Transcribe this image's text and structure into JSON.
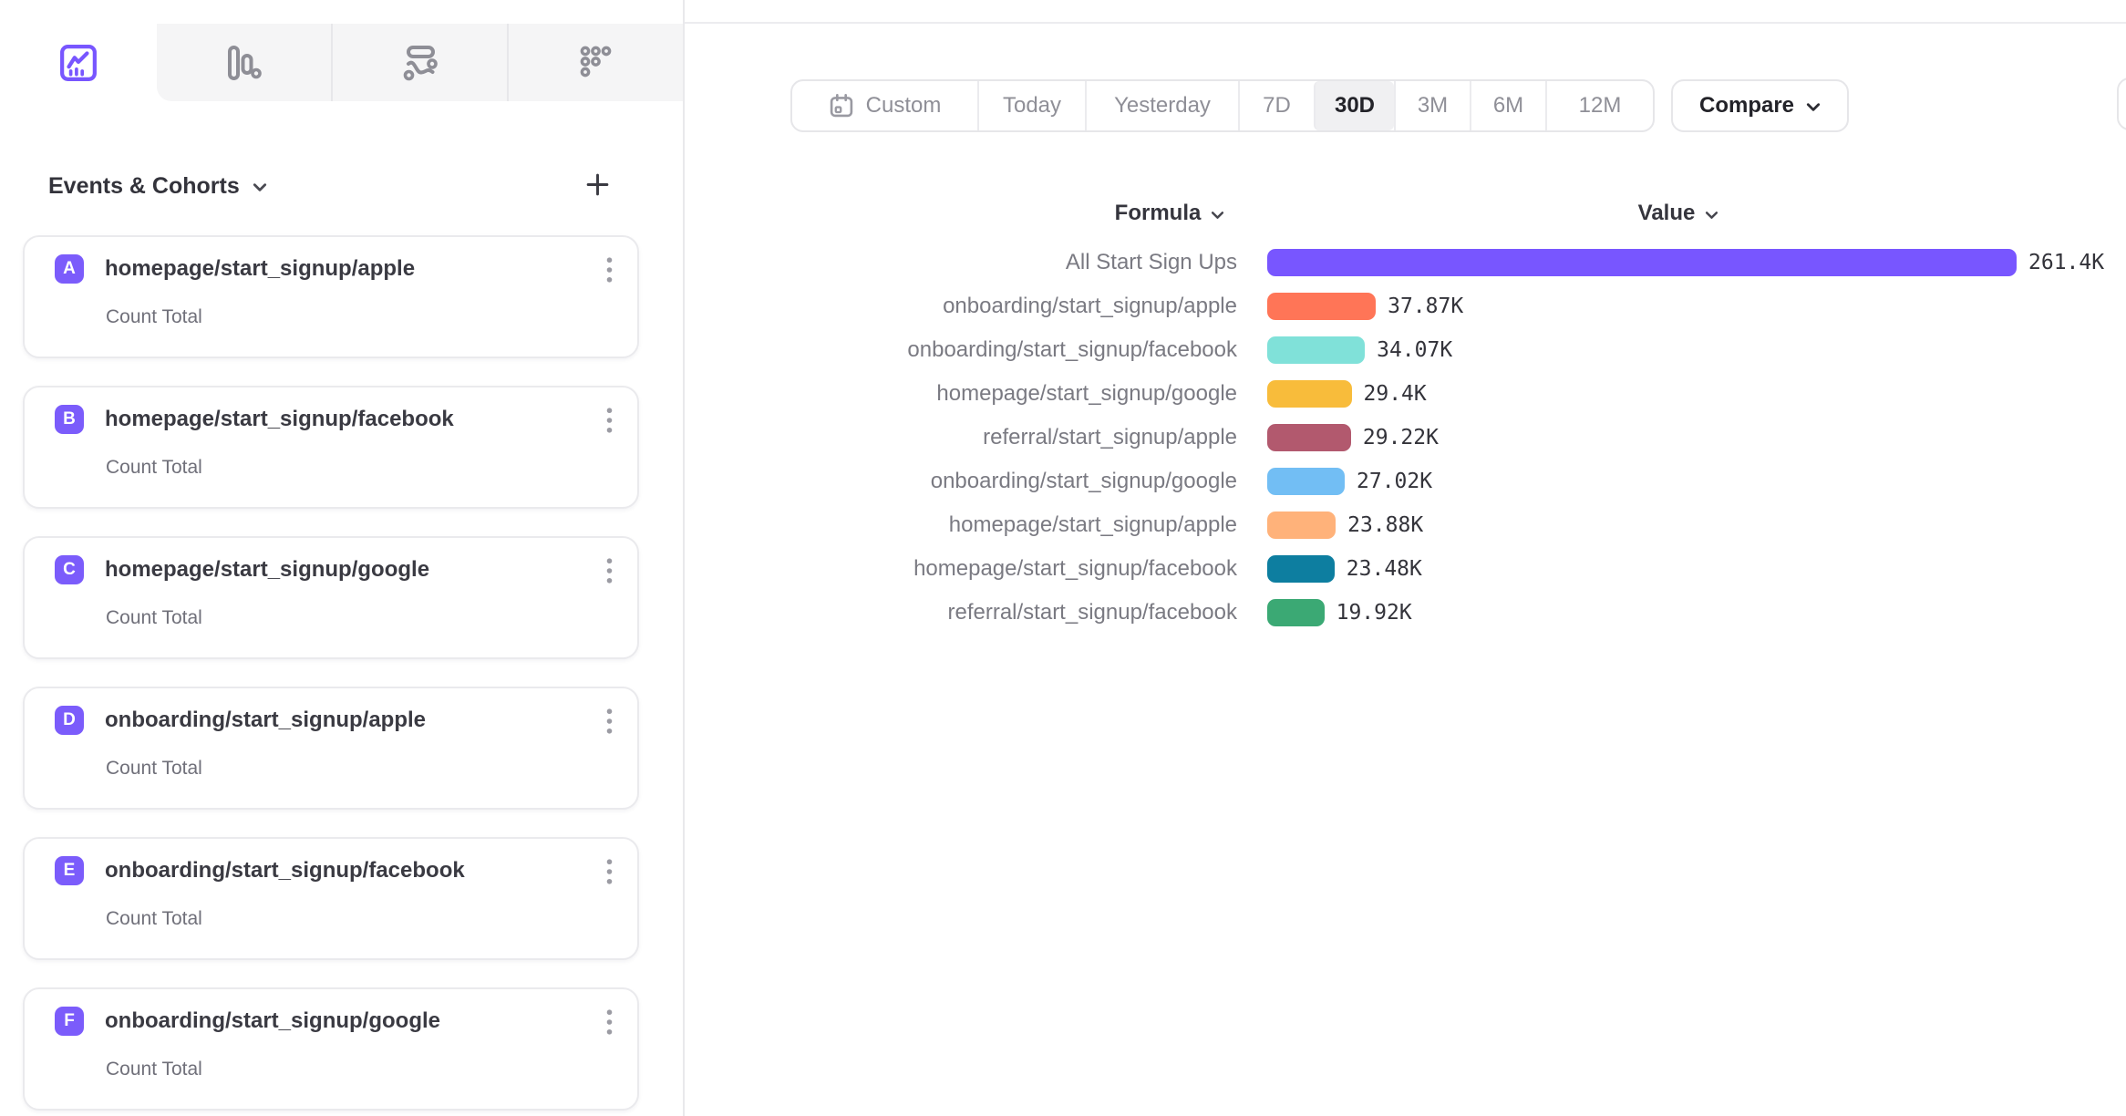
{
  "theme": {
    "accent": "#7856FF",
    "badge_color": "#7B5CFB",
    "icon_gray": "#8E8E96"
  },
  "tabs": [
    {
      "name": "line-chart",
      "icon": "line-chart-icon",
      "active": true
    },
    {
      "name": "bar-chart",
      "icon": "bar-chart-icon",
      "active": false
    },
    {
      "name": "flow",
      "icon": "flow-icon",
      "active": false
    },
    {
      "name": "retention",
      "icon": "retention-grid-icon",
      "active": false
    }
  ],
  "sidebar": {
    "title": "Events & Cohorts",
    "items": [
      {
        "badge": "A",
        "label": "homepage/start_signup/apple",
        "subtitle": "Count Total"
      },
      {
        "badge": "B",
        "label": "homepage/start_signup/facebook",
        "subtitle": "Count Total"
      },
      {
        "badge": "C",
        "label": "homepage/start_signup/google",
        "subtitle": "Count Total"
      },
      {
        "badge": "D",
        "label": "onboarding/start_signup/apple",
        "subtitle": "Count Total"
      },
      {
        "badge": "E",
        "label": "onboarding/start_signup/facebook",
        "subtitle": "Count Total"
      },
      {
        "badge": "F",
        "label": "onboarding/start_signup/google",
        "subtitle": "Count Total"
      }
    ]
  },
  "daterange": {
    "options": [
      "Custom",
      "Today",
      "Yesterday",
      "7D",
      "30D",
      "3M",
      "6M",
      "12M"
    ],
    "selected": "30D",
    "compare_label": "Compare"
  },
  "chart_data": {
    "type": "bar",
    "orientation": "horizontal",
    "column_headers": [
      "Formula",
      "Value"
    ],
    "categories": [
      "All Start Sign Ups",
      "onboarding/start_signup/apple",
      "onboarding/start_signup/facebook",
      "homepage/start_signup/google",
      "referral/start_signup/apple",
      "onboarding/start_signup/google",
      "homepage/start_signup/apple",
      "homepage/start_signup/facebook",
      "referral/start_signup/facebook"
    ],
    "values": [
      261400,
      37870,
      34070,
      29400,
      29220,
      27020,
      23880,
      23480,
      19920
    ],
    "value_labels": [
      "261.4K",
      "37.87K",
      "34.07K",
      "29.4K",
      "29.22K",
      "27.02K",
      "23.88K",
      "23.48K",
      "19.92K"
    ],
    "colors": [
      "#7856FF",
      "#FF7557",
      "#80E1D9",
      "#F8BC3B",
      "#B2596E",
      "#72BEF4",
      "#FFB27A",
      "#0D7EA0",
      "#3BA974"
    ],
    "xlim": [
      0,
      261400
    ],
    "grid": "off",
    "legend": "none"
  }
}
